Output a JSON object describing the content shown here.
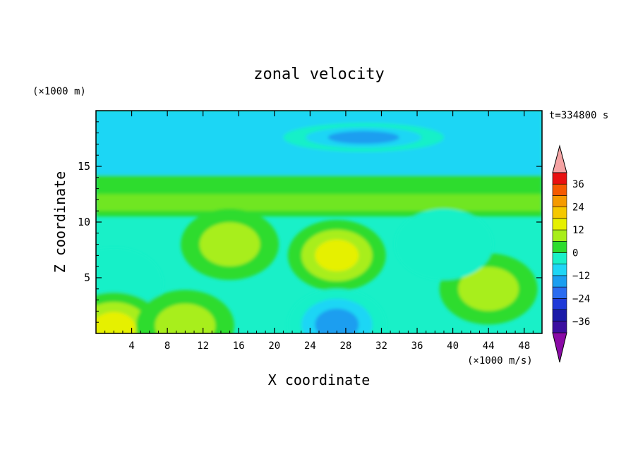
{
  "chart_data": {
    "type": "heatmap",
    "title": "zonal velocity",
    "xlabel": "X coordinate",
    "ylabel": "Z coordinate",
    "x_unit": "(×1000 m/s)",
    "y_unit": "(×1000 m)",
    "time_label": "t=334800 s",
    "xlim": [
      0,
      50
    ],
    "ylim": [
      0,
      20
    ],
    "x_ticks": [
      4,
      8,
      12,
      16,
      20,
      24,
      28,
      32,
      36,
      40,
      44,
      48
    ],
    "y_ticks": [
      5,
      10,
      15
    ],
    "colorbar": {
      "levels": [
        -42,
        -36,
        -30,
        -24,
        -18,
        -12,
        -6,
        0,
        6,
        12,
        18,
        24,
        30,
        36,
        42
      ],
      "tick_values": [
        -36,
        -24,
        -12,
        0,
        12,
        24,
        36
      ],
      "tick_labels": [
        "−36",
        "−24",
        "−12",
        "0",
        "12",
        "24",
        "36"
      ],
      "extend": "both",
      "under_color": "#8a0aa6",
      "over_color": "#f5a3a3",
      "bin_colors": [
        "#3b0fa0",
        "#1a1aa8",
        "#1f3ad8",
        "#2a6cf0",
        "#1a9ef0",
        "#1ed6f5",
        "#19f0c8",
        "#2ddc2d",
        "#a8ee1a",
        "#e6f000",
        "#f5c800",
        "#f59a00",
        "#f55a00",
        "#e81010"
      ]
    },
    "field_features": [
      {
        "x": 27,
        "z": 7,
        "value": 19,
        "note": "positive core"
      },
      {
        "x": 15,
        "z": 8,
        "value": 10
      },
      {
        "x": 44,
        "z": 4,
        "value": 11
      },
      {
        "x": 30,
        "z": 17.6,
        "value": -15,
        "note": "negative pocket aloft"
      },
      {
        "x": 27,
        "z": 0.8,
        "value": -16
      },
      {
        "x": 2,
        "z": 4.5,
        "value": -8
      },
      {
        "x": 39,
        "z": 8,
        "value": -8
      },
      {
        "x": 2,
        "z": 0.5,
        "value": 15
      },
      {
        "x": 10,
        "z": 0.7,
        "value": 12
      }
    ]
  }
}
